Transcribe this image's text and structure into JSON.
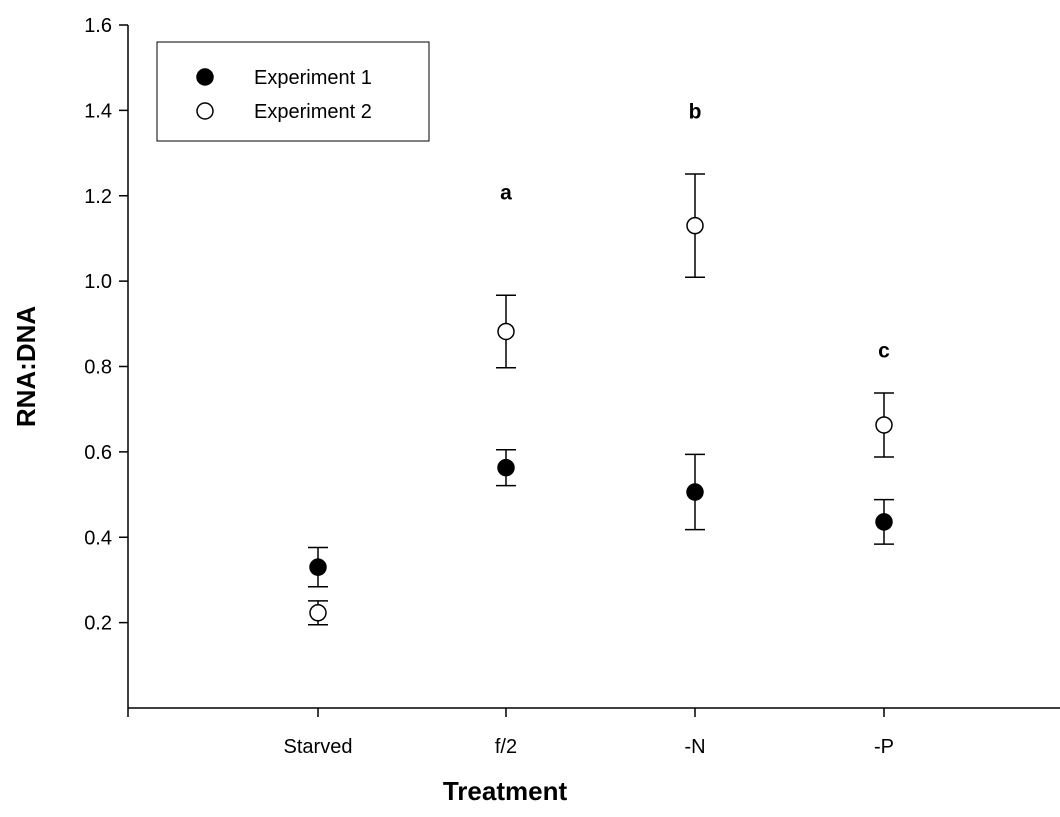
{
  "chart_data": {
    "type": "scatter",
    "xlabel": "Treatment",
    "ylabel": "RNA:DNA",
    "categories": [
      "Starved",
      "f/2",
      "-N",
      "-P"
    ],
    "ylim": [
      0,
      1.6
    ],
    "yticks": [
      "0.2",
      "0.4",
      "0.6",
      "0.8",
      "1.0",
      "1.2",
      "1.4",
      "1.6"
    ],
    "grid": false,
    "legend_position": "top-left",
    "series": [
      {
        "name": "Experiment 1",
        "marker": "filled-circle",
        "values": [
          0.33,
          0.563,
          0.506,
          0.436
        ],
        "errors": [
          0.046,
          0.042,
          0.088,
          0.052
        ]
      },
      {
        "name": "Experiment 2",
        "marker": "open-circle",
        "values": [
          0.223,
          0.882,
          1.13,
          0.663
        ],
        "errors": [
          0.028,
          0.085,
          0.121,
          0.075
        ]
      }
    ],
    "annotations": [
      {
        "text": "a",
        "category": "f/2",
        "y": 1.21
      },
      {
        "text": "b",
        "category": "-N",
        "y": 1.4
      },
      {
        "text": "c",
        "category": "-P",
        "y": 0.84
      }
    ]
  }
}
